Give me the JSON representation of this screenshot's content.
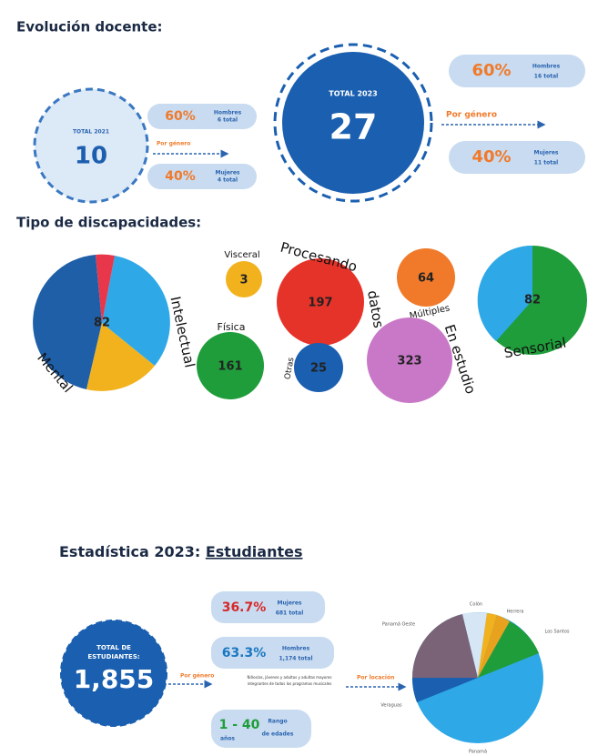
{
  "teachers": {
    "title": "Evolución docente:",
    "y2021": {
      "label": "TOTAL 2021",
      "total": "10",
      "by": "Por género",
      "men": {
        "pct": "60%",
        "label": "Hombres",
        "count": "6 total"
      },
      "women": {
        "pct": "40%",
        "label": "Mujeres",
        "count": "4 total"
      }
    },
    "y2023": {
      "label": "TOTAL 2023",
      "total": "27",
      "by": "Por género",
      "men": {
        "pct": "60%",
        "label": "Hombres",
        "count": "16 total"
      },
      "women": {
        "pct": "40%",
        "label": "Mujeres",
        "count": "11 total"
      }
    }
  },
  "disabilities": {
    "title": "Tipo de discapacidades:",
    "mental": {
      "value": "82",
      "label": "Mental",
      "second": "Intelectual"
    },
    "bubbles": [
      {
        "label": "Visceral",
        "value": "3"
      },
      {
        "label": "Procesando",
        "label2": "datos",
        "value": "197"
      },
      {
        "label": "Múltiples",
        "value": "64"
      },
      {
        "label": "Física",
        "value": "161"
      },
      {
        "label": "Otras",
        "value": "25"
      },
      {
        "label": "En estudio",
        "value": "323"
      }
    ],
    "sensorial": {
      "value": "82",
      "label": "Sensorial"
    }
  },
  "students": {
    "title": "Estadística 2023: ",
    "title_link": "Estudiantes",
    "total_label": [
      "TOTAL DE",
      "ESTUDIANTES:"
    ],
    "total": "1,855",
    "by_gender": "Por género",
    "women": {
      "pct": "36.7%",
      "label": "Mujeres",
      "count": "681 total"
    },
    "men": {
      "pct": "63.3%",
      "label": "Hombres",
      "count": "1,174 total"
    },
    "note": [
      "Niños/as, jóvenes y adultos y adultas mayores",
      "integrantes de todos los programas musicales"
    ],
    "by_location": "Por locación",
    "age": {
      "range": "1 - 40",
      "unit": "años",
      "label": [
        "Rango",
        "de edades"
      ]
    },
    "locations": [
      "Colón",
      "Herrera",
      "Los Santos",
      "Panamá Oeste",
      "Veraguas",
      "Panamá"
    ]
  }
}
